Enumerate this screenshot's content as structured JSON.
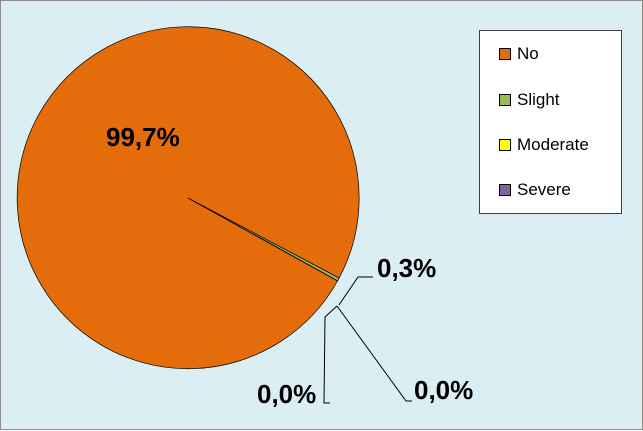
{
  "chart_data": {
    "type": "pie",
    "title": "",
    "categories": [
      "No",
      "Slight",
      "Moderate",
      "Severe"
    ],
    "values": [
      99.7,
      0.3,
      0.0,
      0.0
    ],
    "data_labels": [
      "99,7%",
      "0,3%",
      "0,0%",
      "0,0%"
    ],
    "colors": [
      "#e46c0a",
      "#9bbb59",
      "#ffff00",
      "#8064a2"
    ],
    "legend": {
      "placement": "right",
      "entries": [
        "No",
        "Slight",
        "Moderate",
        "Severe"
      ]
    }
  },
  "background_color": "#dbeef4"
}
